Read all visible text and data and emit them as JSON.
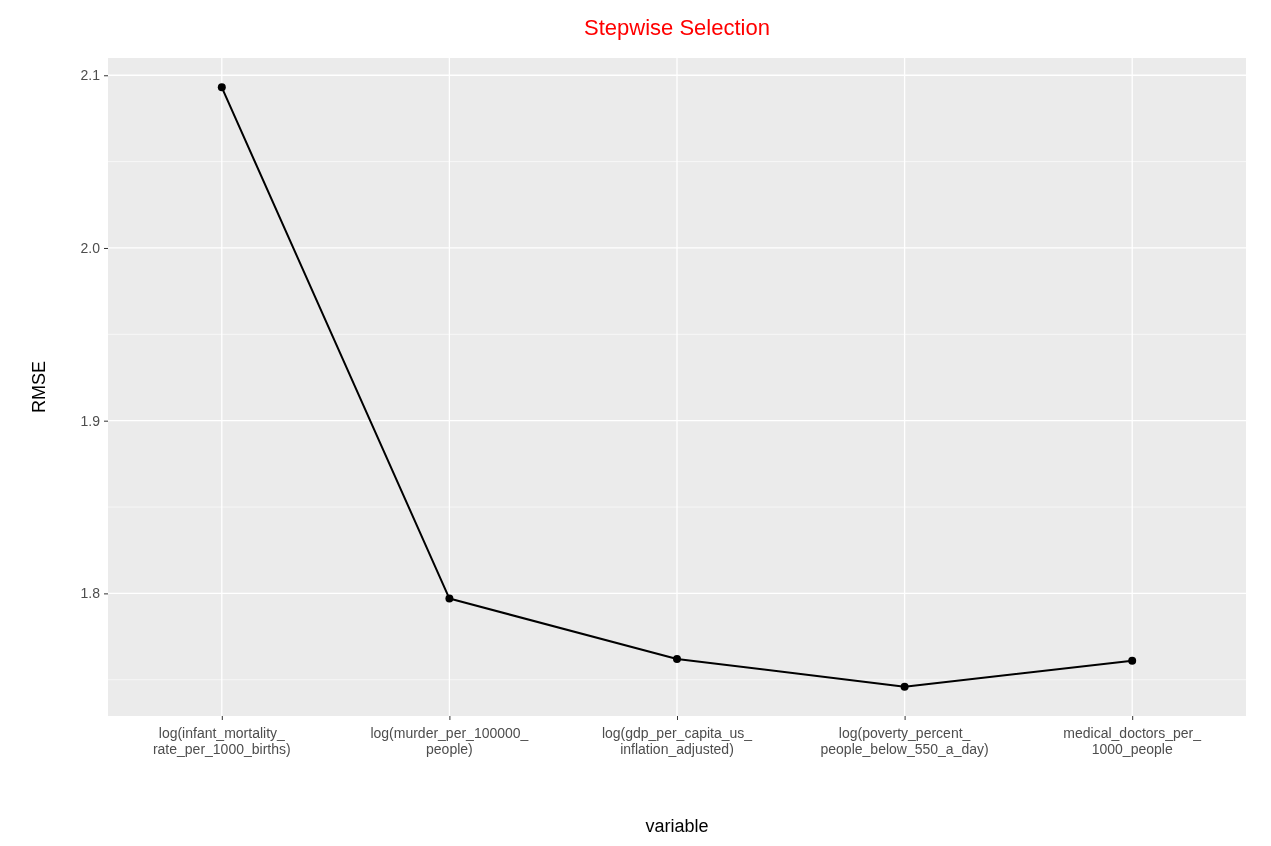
{
  "chart_data": {
    "type": "line",
    "title": "Stepwise Selection",
    "xlabel": "variable",
    "ylabel": "RMSE",
    "categories": [
      "log(infant_mortality_rate_per_1000_births)",
      "log(murder_per_100000_people)",
      "log(gdp_per_capita_us_inflation_adjusted)",
      "log(poverty_percent_people_below_550_a_day)",
      "medical_doctors_per_1000_people"
    ],
    "series": [
      {
        "color": "#000000",
        "values": [
          2.093,
          1.797,
          1.762,
          1.746,
          1.761
        ]
      }
    ],
    "ylim": [
      1.729,
      2.11
    ],
    "yticks": [
      1.8,
      1.9,
      {
        "value": 2,
        "label": "2.0"
      },
      2.1
    ],
    "grid": true,
    "marker": "circle",
    "line_style": "solid"
  }
}
